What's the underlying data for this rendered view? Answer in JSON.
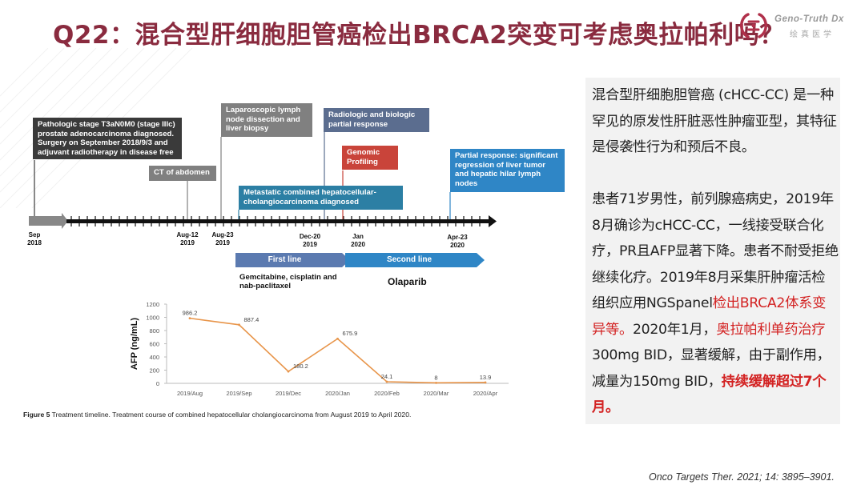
{
  "header": {
    "title": "Q22：混合型肝细胞胆管癌检出BRCA2突变可考虑奥拉帕利吗？",
    "logo_en": "Geno-Truth Dx",
    "logo_cn": "绘真医学"
  },
  "timeline": {
    "events": [
      {
        "id": "path",
        "text": "Pathologic stage T3aN0M0 (stage IIIc) prostate adenocarcinoma diagnosed. Surgery on September 2018/9/3 and adjuvant radiotherapy in disease free"
      },
      {
        "id": "ct",
        "text": "CT of abdomen"
      },
      {
        "id": "lap",
        "text": "Laparoscopic lymph node dissection and liver biopsy"
      },
      {
        "id": "radio",
        "text": "Radiologic and biologic partial response"
      },
      {
        "id": "genomic",
        "text": "Genomic Profiling"
      },
      {
        "id": "partial",
        "text": "Partial response: significant regression of liver tumor and hepatic hilar lymph nodes"
      },
      {
        "id": "meta",
        "text": "Metastatic combined hepatocellular-cholangiocarcinoma diagnosed"
      }
    ],
    "ticks": [
      {
        "label": "Sep\n2018"
      },
      {
        "label": "Aug-12\n2019"
      },
      {
        "label": "Aug-23\n2019"
      },
      {
        "label": "Dec-20\n2019"
      },
      {
        "label": "Jan\n2020"
      },
      {
        "label": "Apr-23\n2020"
      }
    ],
    "lines": [
      {
        "label": "First line",
        "drug": "Gemcitabine, cisplatin and nab-paclitaxel"
      },
      {
        "label": "Second line",
        "drug": "Olaparib"
      }
    ],
    "colors": {
      "dark": "#3a3a3a",
      "gray": "#808080",
      "slate": "#5b6d8f",
      "red": "#c9443a",
      "teal": "#2c7fa4",
      "blue": "#2f86c6"
    }
  },
  "chart_data": {
    "type": "line",
    "categories": [
      "2019/Aug",
      "2019/Sep",
      "2019/Dec",
      "2020/Jan",
      "2020/Feb",
      "2020/Mar",
      "2020/Apr"
    ],
    "series": [
      {
        "values": [
          986.2,
          887.4,
          180.2,
          675.9,
          24.1,
          8,
          13.9
        ]
      }
    ],
    "data_labels": [
      "986.2",
      "887.4",
      "180.2",
      "675.9",
      "24.1",
      "8",
      "13.9"
    ],
    "ylabel": "AFP (ng/mL)",
    "xlabel": "",
    "ylim": [
      0,
      1200
    ],
    "yticks": [
      0,
      200,
      400,
      600,
      800,
      1000,
      1200
    ],
    "grid": false,
    "line_color": "#e8954a"
  },
  "caption": {
    "label": "Figure 5",
    "text": "Treatment timeline. Treatment course of combined hepatocellular cholangiocarcinoma from August 2019 to April 2020."
  },
  "panel": {
    "p1": "混合型肝细胞胆管癌 (cHCC-CC) 是一种罕见的原发性肝脏恶性肿瘤亚型，其特征是侵袭性行为和预后不良。",
    "p2a": "患者71岁男性，前列腺癌病史，2019年8月确诊为cHCC-CC，一线接受联合化疗，PR且AFP显著下降。患者不耐受拒绝继续化疗。2019年8月采集肝肿瘤活检组织应用NGSpanel",
    "p2b": "检出BRCA2体系变异等。",
    "p2c": "2020年1月，",
    "p2d": "奥拉帕利单药治疗",
    "p2e": "300mg BID，显著缓解，由于副作用，减量为150mg BID，",
    "p2f": "持续缓解超过7个月。"
  },
  "reference": "Onco Targets Ther. 2021; 14: 3895–3901."
}
